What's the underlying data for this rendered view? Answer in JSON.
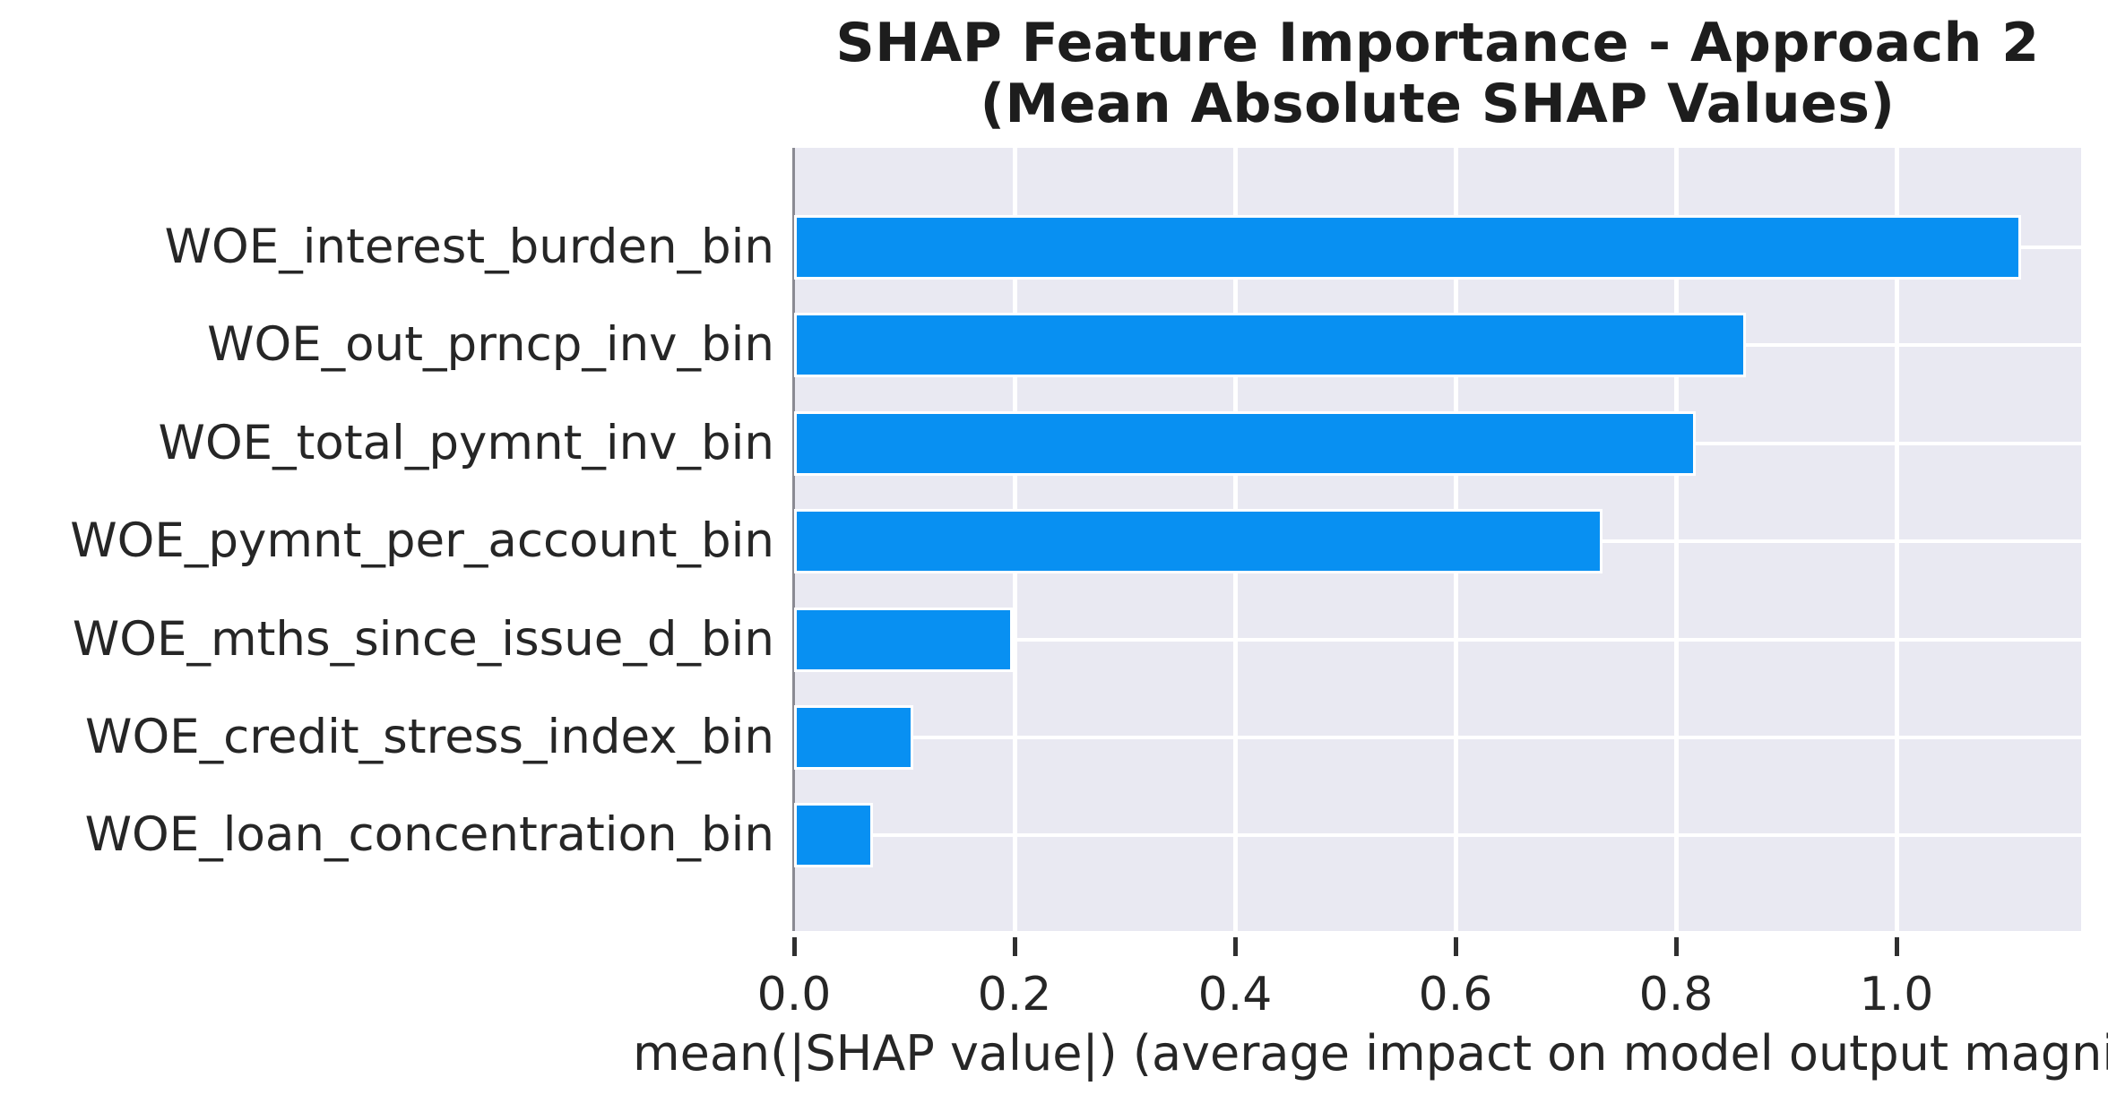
{
  "title": {
    "line1": "SHAP Feature Importance - Approach 2",
    "line2": "(Mean Absolute SHAP Values)"
  },
  "chart_data": {
    "type": "bar",
    "orientation": "horizontal",
    "title": "SHAP Feature Importance - Approach 2 (Mean Absolute SHAP Values)",
    "categories": [
      "WOE_interest_burden_bin",
      "WOE_out_prncp_inv_bin",
      "WOE_total_pymnt_inv_bin",
      "WOE_pymnt_per_account_bin",
      "WOE_mths_since_issue_d_bin",
      "WOE_credit_stress_index_bin",
      "WOE_loan_concentration_bin"
    ],
    "values": [
      1.11,
      0.86,
      0.815,
      0.73,
      0.195,
      0.105,
      0.068
    ],
    "xlabel": "mean(|SHAP value|) (average impact on model output magni",
    "ylabel": "",
    "x_tick_labels": [
      "0.0",
      "0.2",
      "0.4",
      "0.6",
      "0.8",
      "1.0"
    ],
    "x_tick_values": [
      0.0,
      0.2,
      0.4,
      0.6,
      0.8,
      1.0
    ],
    "xlim": [
      0,
      1.1675
    ],
    "grid": true,
    "grid_color": "#ffffff",
    "legend": false,
    "colors": {
      "bar": "#0890f2",
      "plot_background": "#e9e9f2",
      "figure_background": "#ffffff",
      "text": "#262626",
      "title_text": "#1d1d1d",
      "spine": "#8a8a93",
      "tick": "#2f2f2f"
    }
  }
}
